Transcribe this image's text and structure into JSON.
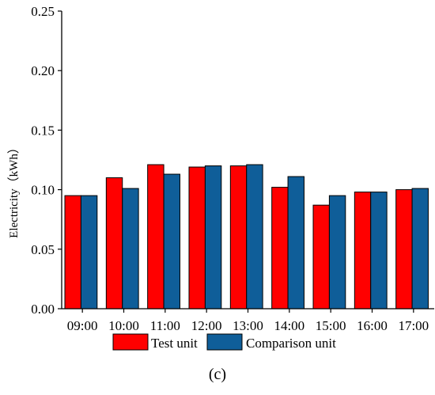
{
  "chart_data": {
    "type": "bar",
    "categories": [
      "09:00",
      "10:00",
      "11:00",
      "12:00",
      "13:00",
      "14:00",
      "15:00",
      "16:00",
      "17:00"
    ],
    "series": [
      {
        "name": "Test unit",
        "color": "#ff0000",
        "values": [
          0.095,
          0.11,
          0.121,
          0.119,
          0.12,
          0.102,
          0.087,
          0.098,
          0.1
        ]
      },
      {
        "name": "Comparison unit",
        "color": "#0f5e99",
        "values": [
          0.095,
          0.101,
          0.113,
          0.12,
          0.121,
          0.111,
          0.095,
          0.098,
          0.101
        ]
      }
    ],
    "ylabel": "Electricity（kWh）",
    "ylim": [
      0,
      0.25
    ],
    "yticks": [
      "0.00",
      "0.05",
      "0.10",
      "0.15",
      "0.20",
      "0.25"
    ],
    "grid": false,
    "legend_position": "bottom"
  },
  "caption": "(c)"
}
